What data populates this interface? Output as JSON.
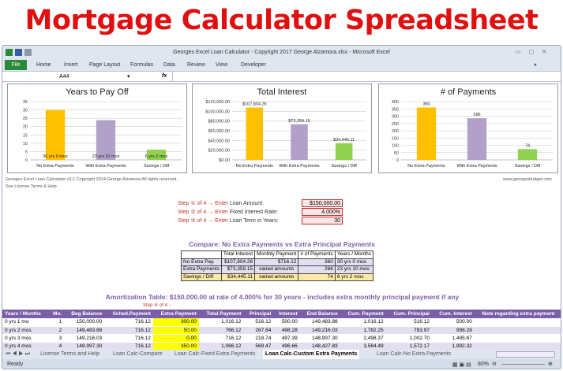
{
  "headline": "Mortgage Calculator Spreadsheet",
  "window": {
    "title": "Georges Excel Loan Calculator -  Copyright 2017 George Alzamora.xlsx  -  Microsoft Excel"
  },
  "ribbon": {
    "tabs": [
      "File",
      "Home",
      "Insert",
      "Page Layout",
      "Formulas",
      "Data",
      "Review",
      "View",
      "Developer"
    ]
  },
  "formula_bar": {
    "name_box": "A44",
    "fx": "fx",
    "value": ""
  },
  "charts": [
    {
      "type": "bar",
      "title": "Years to Pay Off",
      "categories": [
        "No Extra Payments",
        "With Extra Payments",
        "Savings / Diff"
      ],
      "values": [
        30,
        23.83,
        6.17
      ],
      "labels": [
        "30 yrs 0 mos",
        "23 yrs 10 mos",
        "6 yrs 2 mos"
      ],
      "ylim": [
        0,
        35
      ],
      "ticks": [
        "0",
        "5",
        "10",
        "15",
        "20",
        "25",
        "30",
        "35"
      ],
      "colors": [
        "#ffc000",
        "#b1a0c7",
        "#92d050"
      ],
      "grid": true
    },
    {
      "type": "bar",
      "title": "Total Interest",
      "categories": [
        "No Extra Payments",
        "With Extra Payments",
        "Savings / Diff"
      ],
      "values": [
        107804.26,
        73359.15,
        34445.11
      ],
      "labels": [
        "$107,804.26",
        "$73,359.15",
        "$34,445.11"
      ],
      "ylim": [
        0,
        120000
      ],
      "ticks": [
        "$0.00",
        "$20,000.00",
        "$40,000.00",
        "$60,000.00",
        "$80,000.00",
        "$100,000.00",
        "$120,000.00"
      ],
      "colors": [
        "#ffc000",
        "#b1a0c7",
        "#92d050"
      ],
      "grid": true
    },
    {
      "type": "bar",
      "title": "# of Payments",
      "categories": [
        "No Extra Payments",
        "With Extra Payments",
        "Savings / Diff"
      ],
      "values": [
        360,
        286,
        74
      ],
      "labels": [
        "360",
        "286",
        "74"
      ],
      "ylim": [
        0,
        400
      ],
      "ticks": [
        "0",
        "50",
        "100",
        "150",
        "200",
        "250",
        "300",
        "350",
        "400"
      ],
      "colors": [
        "#ffc000",
        "#b1a0c7",
        "#92d050"
      ],
      "grid": true
    }
  ],
  "footer": {
    "copyright": "Georges Excel Loan Calculator v3.1    Copyright 2014  George Alzamora  All rights reserved.",
    "license": "See License Terms & Help",
    "site": "www.georgesbudget.com"
  },
  "steps": [
    {
      "num": "1",
      "pre": "Step ① of 4 → Enter",
      "label": "Loan Amount:",
      "value": "$150,000.00"
    },
    {
      "num": "2",
      "pre": "Step ② of 4 → Enter",
      "label": "Fixed Interest Rate:",
      "value": "4.000%"
    },
    {
      "num": "3",
      "pre": "Step ③ of 4 → Enter",
      "label": "Loan Term in Years:",
      "value": "30"
    }
  ],
  "compare": {
    "title": "Compare: No Extra Payments vs Extra Principal Payments",
    "headers": [
      "",
      "Total Interest",
      "Monthly Payment",
      "# of Payments",
      "Years / Months"
    ],
    "rows": [
      [
        "No Extra Pay.",
        "$107,804.26",
        "$716.12",
        "360",
        "30 yrs 0 mos"
      ],
      [
        "Extra Payments",
        "$73,359.15",
        "varied amounts",
        "286",
        "23 yrs 10 mos"
      ],
      [
        "Savings / Diff",
        "$34,445.11",
        "varied amounts",
        "74",
        "6 yrs 2 mos"
      ]
    ]
  },
  "amort": {
    "title": "Amortization Table:  $150,000.00 at rate of 4.000% for 30 years - includes extra monthly principal payment if any",
    "step4": "Step ④ of 4 ↓",
    "headers": [
      "Years / Months",
      "Mo.",
      "Beg Balance",
      "Sched.Payment",
      "Extra Payment",
      "Total Payment",
      "Principal",
      "Interest",
      "End Balance",
      "Cum. Payment",
      "Cum. Principal",
      "Cum. Interest",
      "Note regarding extra payment"
    ],
    "rows": [
      [
        "0 yrs 1 mo",
        "1",
        "150,000.00",
        "716.12",
        "300.00",
        "1,016.12",
        "516.12",
        "500.00",
        "149,483.88",
        "1,016.12",
        "516.12",
        "500.00",
        ""
      ],
      [
        "0 yrs 2 mos",
        "2",
        "149,483.88",
        "716.12",
        "50.00",
        "766.12",
        "267.84",
        "498.28",
        "149,216.03",
        "1,782.25",
        "783.97",
        "998.28",
        ""
      ],
      [
        "0 yrs 3 mos",
        "3",
        "149,216.03",
        "716.12",
        "0.00",
        "716.12",
        "218.74",
        "497.39",
        "148,997.30",
        "2,498.37",
        "1,002.70",
        "1,495.67",
        ""
      ],
      [
        "0 yrs 4 mos",
        "4",
        "148,997.30",
        "716.12",
        "350.00",
        "1,066.12",
        "569.47",
        "496.66",
        "148,427.83",
        "3,564.49",
        "1,572.17",
        "1,992.32",
        ""
      ]
    ]
  },
  "sheet_tabs": [
    "License Terms and Help",
    "Loan Calc-Compare",
    "Loan Calc-Fixed Extra Payments",
    "Loan Calc-Custom Extra Payments",
    "Loan Calc-No Extra Payments"
  ],
  "active_tab": 3,
  "status": {
    "ready": "Ready",
    "zoom": "80%"
  }
}
